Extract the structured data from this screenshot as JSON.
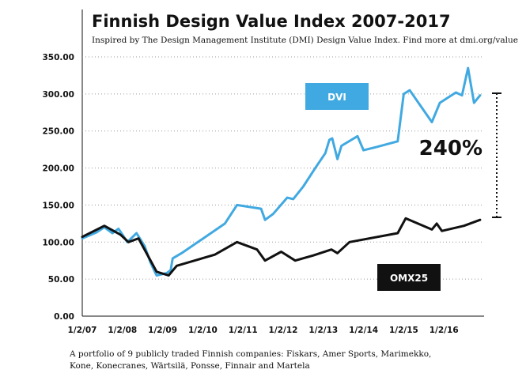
{
  "header": {
    "title": "Finnish Design Value Index 2007-2017",
    "subtitle": "Inspired by The Design Management Institute (DMI) Design Value Index. Find more at dmi.org/value"
  },
  "footnote": "A portfolio of 9 publicly traded Finnish companies: Fiskars, Amer Sports, Marimekko, Kone, Konecranes, Wärtsilä, Ponsse, Finnair and Martela",
  "callout": {
    "text": "240%"
  },
  "colors": {
    "dvi": "#41a9e1",
    "omx25": "#111111",
    "grid": "#9a9a9a"
  },
  "chart_data": {
    "type": "line",
    "title": "Finnish Design Value Index 2007-2017",
    "xlabel": "",
    "ylabel": "",
    "ylim": [
      0,
      350
    ],
    "xlim": [
      2007.0,
      2017.0
    ],
    "grid": "horizontal dotted",
    "legend": "inline labels",
    "y_ticks": [
      "0.00",
      "50.00",
      "100.00",
      "150.00",
      "200.00",
      "250.00",
      "300.00",
      "350.00"
    ],
    "y_tick_values": [
      0,
      50,
      100,
      150,
      200,
      250,
      300,
      350
    ],
    "x_ticks": [
      "1/2/07",
      "1/2/08",
      "1/2/09",
      "1/2/10",
      "1/2/11",
      "1/2/12",
      "1/2/13",
      "1/2/14",
      "1/2/15",
      "1/2/16"
    ],
    "x_tick_values": [
      2007,
      2008,
      2009,
      2010,
      2011,
      2012,
      2013,
      2014,
      2015,
      2016
    ],
    "series": [
      {
        "name": "DVI",
        "points": [
          [
            2007.0,
            105
          ],
          [
            2007.35,
            113
          ],
          [
            2007.55,
            120
          ],
          [
            2007.75,
            112
          ],
          [
            2007.9,
            118
          ],
          [
            2008.0,
            110
          ],
          [
            2008.12,
            100
          ],
          [
            2008.35,
            112
          ],
          [
            2008.55,
            95
          ],
          [
            2008.7,
            72
          ],
          [
            2008.85,
            55
          ],
          [
            2009.1,
            58
          ],
          [
            2009.2,
            62
          ],
          [
            2009.25,
            78
          ],
          [
            2009.5,
            86
          ],
          [
            2010.55,
            125
          ],
          [
            2010.85,
            150
          ],
          [
            2011.45,
            145
          ],
          [
            2011.55,
            130
          ],
          [
            2011.75,
            138
          ],
          [
            2012.1,
            160
          ],
          [
            2012.25,
            158
          ],
          [
            2012.5,
            175
          ],
          [
            2012.8,
            200
          ],
          [
            2013.05,
            220
          ],
          [
            2013.15,
            238
          ],
          [
            2013.22,
            240
          ],
          [
            2013.35,
            212
          ],
          [
            2013.45,
            230
          ],
          [
            2013.85,
            243
          ],
          [
            2014.0,
            224
          ],
          [
            2014.3,
            228
          ],
          [
            2014.85,
            236
          ],
          [
            2015.0,
            300
          ],
          [
            2015.15,
            305
          ],
          [
            2015.7,
            262
          ],
          [
            2015.9,
            288
          ],
          [
            2016.3,
            302
          ],
          [
            2016.45,
            298
          ],
          [
            2016.6,
            335
          ],
          [
            2016.75,
            288
          ],
          [
            2016.9,
            298
          ]
        ]
      },
      {
        "name": "OMX25",
        "points": [
          [
            2007.0,
            107
          ],
          [
            2007.55,
            122
          ],
          [
            2007.95,
            110
          ],
          [
            2008.15,
            100
          ],
          [
            2008.4,
            105
          ],
          [
            2008.65,
            80
          ],
          [
            2008.85,
            60
          ],
          [
            2009.15,
            55
          ],
          [
            2009.35,
            68
          ],
          [
            2010.3,
            83
          ],
          [
            2010.85,
            100
          ],
          [
            2011.35,
            90
          ],
          [
            2011.55,
            75
          ],
          [
            2011.95,
            87
          ],
          [
            2012.3,
            75
          ],
          [
            2012.75,
            82
          ],
          [
            2013.2,
            90
          ],
          [
            2013.35,
            85
          ],
          [
            2013.65,
            100
          ],
          [
            2014.85,
            112
          ],
          [
            2015.05,
            132
          ],
          [
            2015.7,
            117
          ],
          [
            2015.82,
            125
          ],
          [
            2015.95,
            115
          ],
          [
            2016.5,
            122
          ],
          [
            2016.9,
            130
          ]
        ]
      }
    ]
  }
}
